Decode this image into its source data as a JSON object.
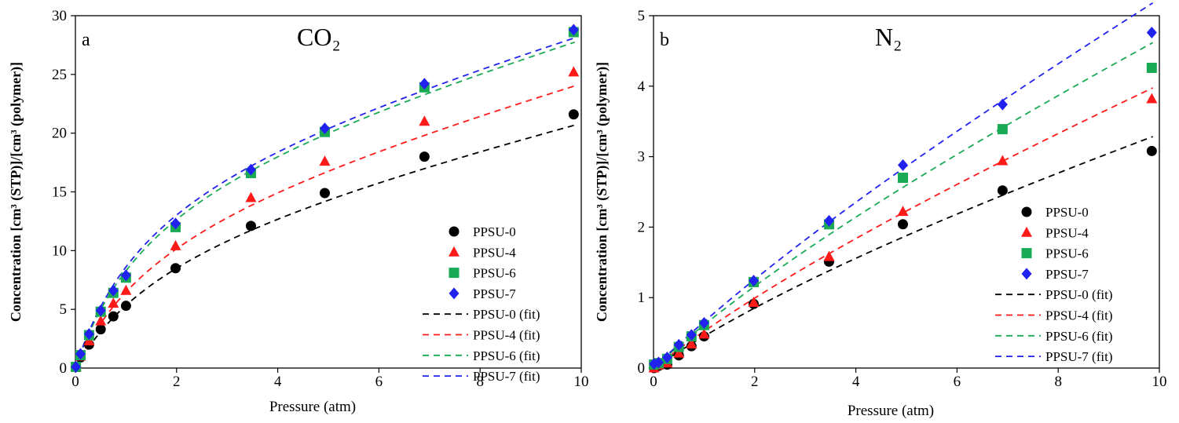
{
  "y_axis_label": "Concentration [cm³ (STP)]/[cm³ (polymer)]",
  "chart_data": [
    {
      "type": "scatter",
      "panel_label": "a",
      "title": "CO₂",
      "xlabel": "Pressure (atm)",
      "ylabel": "Concentration [cm³ (STP)]/[cm³ (polymer)]",
      "xlim": [
        0,
        10
      ],
      "ylim": [
        0,
        30
      ],
      "xticks": [
        0,
        2,
        4,
        6,
        8,
        10
      ],
      "yticks": [
        0,
        5,
        10,
        15,
        20,
        25,
        30
      ],
      "legend_position": "bottom-right",
      "series": [
        {
          "name": "PPSU-0",
          "color": "#000000",
          "marker": "circle",
          "x": [
            0.01,
            0.1,
            0.27,
            0.5,
            0.75,
            1.0,
            1.98,
            3.47,
            4.93,
            6.9,
            9.85
          ],
          "y": [
            0.1,
            0.9,
            2.0,
            3.3,
            4.4,
            5.3,
            8.5,
            12.1,
            14.9,
            18.0,
            21.6
          ]
        },
        {
          "name": "PPSU-4",
          "color": "#ff1a1a",
          "marker": "triangle",
          "x": [
            0.01,
            0.1,
            0.27,
            0.5,
            0.75,
            1.0,
            1.98,
            3.47,
            4.93,
            6.9,
            9.85
          ],
          "y": [
            0.1,
            1.0,
            2.3,
            4.0,
            5.5,
            6.6,
            10.4,
            14.5,
            17.6,
            21.0,
            25.2
          ]
        },
        {
          "name": "PPSU-6",
          "color": "#1aaa55",
          "marker": "square",
          "x": [
            0.01,
            0.1,
            0.27,
            0.5,
            0.75,
            1.0,
            1.98,
            3.47,
            4.93,
            6.9,
            9.85
          ],
          "y": [
            0.1,
            1.1,
            2.8,
            4.8,
            6.4,
            7.7,
            12.0,
            16.6,
            20.1,
            23.9,
            28.6
          ]
        },
        {
          "name": "PPSU-7",
          "color": "#2222ee",
          "marker": "diamond",
          "x": [
            0.01,
            0.1,
            0.27,
            0.5,
            0.75,
            1.0,
            1.98,
            3.47,
            4.93,
            6.9,
            9.85
          ],
          "y": [
            0.1,
            1.2,
            2.9,
            4.9,
            6.6,
            7.9,
            12.3,
            16.9,
            20.4,
            24.2,
            28.8
          ]
        }
      ],
      "fits": [
        {
          "name": "PPSU-0 (fit)",
          "color": "#000000",
          "kD": 1.0,
          "cH": 13.0,
          "b": 0.5
        },
        {
          "name": "PPSU-4 (fit)",
          "color": "#ff1a1a",
          "kD": 1.15,
          "cH": 15.0,
          "b": 0.55
        },
        {
          "name": "PPSU-6 (fit)",
          "color": "#1aaa55",
          "kD": 1.2,
          "cH": 18.5,
          "b": 0.62
        },
        {
          "name": "PPSU-7 (fit)",
          "color": "#2222ee",
          "kD": 1.2,
          "cH": 18.8,
          "b": 0.65
        }
      ]
    },
    {
      "type": "scatter",
      "panel_label": "b",
      "title": "N₂",
      "xlabel": "Pressure (atm)",
      "ylabel": "Concentration [cm³ (STP)]/[cm³ (polymer)]",
      "xlim": [
        0,
        10
      ],
      "ylim": [
        0,
        5
      ],
      "xticks": [
        0,
        2,
        4,
        6,
        8,
        10
      ],
      "yticks": [
        0,
        1,
        2,
        3,
        4,
        5
      ],
      "legend_position": "bottom-right",
      "series": [
        {
          "name": "PPSU-0",
          "color": "#000000",
          "marker": "circle",
          "x": [
            0.01,
            0.1,
            0.27,
            0.5,
            0.75,
            1.0,
            1.98,
            3.47,
            4.93,
            6.9,
            9.85
          ],
          "y": [
            0.0,
            0.03,
            0.05,
            0.18,
            0.31,
            0.45,
            0.91,
            1.51,
            2.04,
            2.52,
            3.08
          ]
        },
        {
          "name": "PPSU-4",
          "color": "#ff1a1a",
          "marker": "triangle",
          "x": [
            0.01,
            0.1,
            0.27,
            0.5,
            0.75,
            1.0,
            1.98,
            3.47,
            4.93,
            6.9,
            9.85
          ],
          "y": [
            0.0,
            0.04,
            0.07,
            0.21,
            0.34,
            0.48,
            0.93,
            1.58,
            2.22,
            2.94,
            3.82
          ]
        },
        {
          "name": "PPSU-6",
          "color": "#1aaa55",
          "marker": "square",
          "x": [
            0.01,
            0.1,
            0.27,
            0.5,
            0.75,
            1.0,
            1.98,
            3.47,
            4.93,
            6.9,
            9.85
          ],
          "y": [
            0.05,
            0.07,
            0.13,
            0.3,
            0.45,
            0.61,
            1.22,
            2.04,
            2.7,
            3.39,
            4.26
          ]
        },
        {
          "name": "PPSU-7",
          "color": "#2222ee",
          "marker": "diamond",
          "x": [
            0.01,
            0.1,
            0.27,
            0.5,
            0.75,
            1.0,
            1.98,
            3.47,
            4.93,
            6.9,
            9.85
          ],
          "y": [
            0.06,
            0.08,
            0.15,
            0.33,
            0.47,
            0.64,
            1.24,
            2.09,
            2.88,
            3.74,
            4.76
          ]
        }
      ],
      "fits": [
        {
          "name": "PPSU-0 (fit)",
          "color": "#000000",
          "kD": 0.23,
          "cH": 1.7,
          "b": 0.15
        },
        {
          "name": "PPSU-4 (fit)",
          "color": "#ff1a1a",
          "kD": 0.3,
          "cH": 1.7,
          "b": 0.15
        },
        {
          "name": "PPSU-6 (fit)",
          "color": "#1aaa55",
          "kD": 0.35,
          "cH": 1.9,
          "b": 0.16
        },
        {
          "name": "PPSU-7 (fit)",
          "color": "#2222ee",
          "kD": 0.41,
          "cH": 1.9,
          "b": 0.15
        }
      ]
    }
  ]
}
